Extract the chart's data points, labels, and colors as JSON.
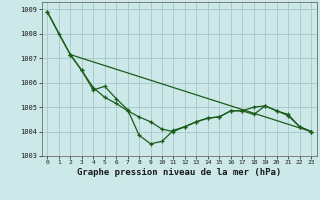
{
  "title": "Graphe pression niveau de la mer (hPa)",
  "background_color": "#cce8e8",
  "grid_color": "#aacccc",
  "line_color": "#1a5c1a",
  "xlim": [
    -0.5,
    23.5
  ],
  "ylim": [
    1003,
    1009.3
  ],
  "xticks": [
    0,
    1,
    2,
    3,
    4,
    5,
    6,
    7,
    8,
    9,
    10,
    11,
    12,
    13,
    14,
    15,
    16,
    17,
    18,
    19,
    20,
    21,
    22,
    23
  ],
  "yticks": [
    1003,
    1004,
    1005,
    1006,
    1007,
    1008,
    1009
  ],
  "series1_x": [
    0,
    1,
    2,
    3,
    4,
    5,
    6,
    7,
    8,
    9,
    10,
    11,
    12,
    13,
    14,
    15,
    16,
    17,
    18,
    19,
    20,
    21,
    22,
    23
  ],
  "series1_y": [
    1008.9,
    1008.0,
    1007.15,
    1006.5,
    1005.8,
    1005.4,
    1005.15,
    1004.85,
    1004.6,
    1004.4,
    1004.1,
    1004.0,
    1004.2,
    1004.4,
    1004.55,
    1004.6,
    1004.85,
    1004.85,
    1004.7,
    1005.05,
    1004.85,
    1004.65,
    1004.2,
    1004.0
  ],
  "series2_x": [
    0,
    2,
    23
  ],
  "series2_y": [
    1008.9,
    1007.15,
    1004.0
  ],
  "series3_x": [
    2,
    3,
    4,
    5,
    6,
    7,
    8,
    9,
    10,
    11,
    12,
    13,
    14,
    15,
    16,
    17,
    18,
    19,
    20,
    21,
    22,
    23
  ],
  "series3_y": [
    1007.15,
    1006.5,
    1005.7,
    1005.85,
    1005.35,
    1004.9,
    1003.85,
    1003.5,
    1003.6,
    1004.05,
    1004.2,
    1004.4,
    1004.55,
    1004.6,
    1004.85,
    1004.85,
    1005.0,
    1005.05,
    1004.85,
    1004.7,
    1004.2,
    1004.0
  ]
}
